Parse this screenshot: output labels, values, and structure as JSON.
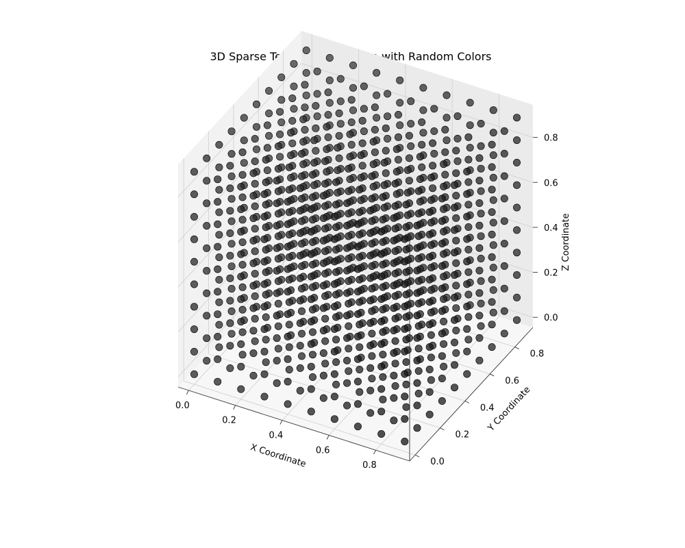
{
  "chart_data": {
    "type": "scatter",
    "title": "3D Sparse Tensor Visualization with Random Colors",
    "xlabel": "X Coordinate",
    "ylabel": "Y Coordinate",
    "zlabel": "Z Coordinate",
    "xlim": [
      -0.045,
      0.945
    ],
    "ylim": [
      -0.045,
      0.945
    ],
    "zlim": [
      -0.045,
      0.945
    ],
    "x_ticks": [
      "0.0",
      "0.2",
      "0.4",
      "0.6",
      "0.8"
    ],
    "y_ticks": [
      "0.0",
      "0.2",
      "0.4",
      "0.6",
      "0.8"
    ],
    "z_ticks": [
      "0.0",
      "0.2",
      "0.4",
      "0.6",
      "0.8"
    ],
    "grid": true,
    "points": {
      "description_of_grid": "regular lattice of points",
      "x_values": [
        0.0,
        0.1,
        0.2,
        0.3,
        0.4,
        0.5,
        0.6,
        0.7,
        0.8,
        0.9
      ],
      "y_values": [
        0.0,
        0.1,
        0.2,
        0.3,
        0.4,
        0.5,
        0.6,
        0.7,
        0.8,
        0.9
      ],
      "z_values": [
        0.0,
        0.1,
        0.2,
        0.3,
        0.4,
        0.5,
        0.6,
        0.7,
        0.8,
        0.9
      ],
      "color": "#1a1a1a",
      "alpha": 0.75
    }
  }
}
